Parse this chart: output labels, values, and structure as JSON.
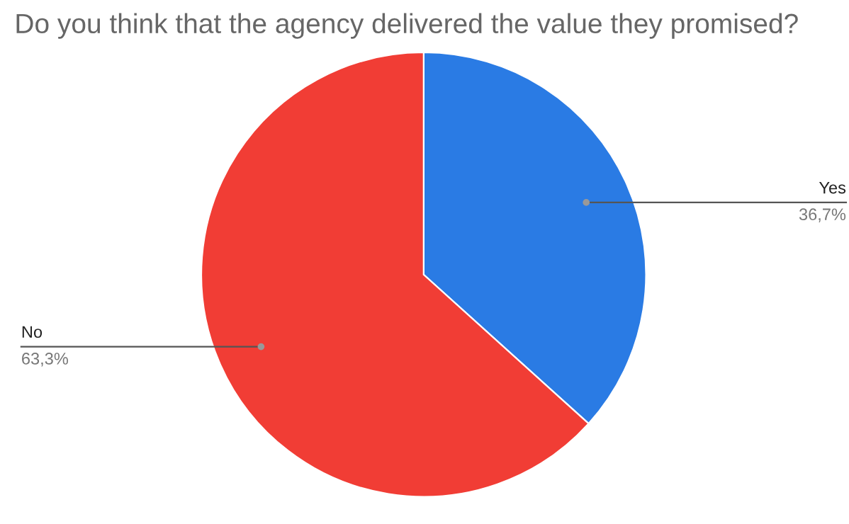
{
  "chart_data": {
    "type": "pie",
    "title": "Do you think that the agency delivered the value they promised?",
    "categories": [
      "Yes",
      "No"
    ],
    "values": [
      36.7,
      63.3
    ],
    "value_labels": [
      "36,7%",
      "63,3%"
    ],
    "colors": [
      "#2a7be4",
      "#f13d35"
    ]
  }
}
